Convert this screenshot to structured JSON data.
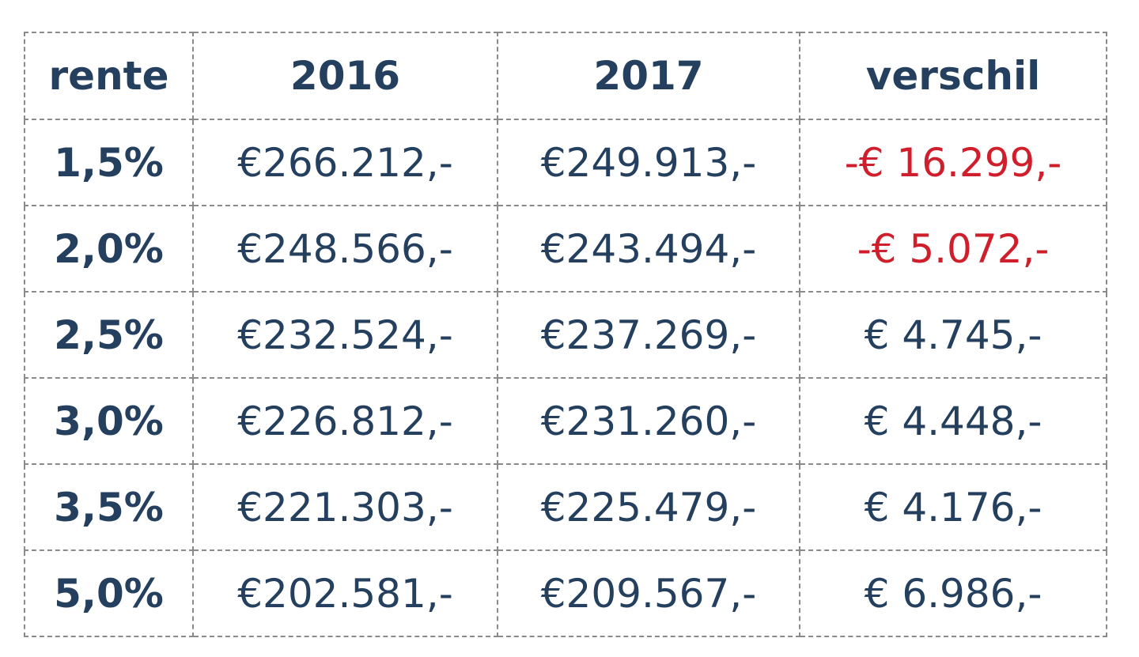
{
  "table": {
    "header": [
      "rente",
      "2016",
      "2017",
      "verschil"
    ],
    "rows": [
      [
        "1,5%",
        "€266.212,-",
        "€249.913,-",
        "-€ 16.299,-"
      ],
      [
        "2,0%",
        "€248.566,-",
        "€243.494,-",
        "-€ 5.072,-"
      ],
      [
        "2,5%",
        "€232.524,-",
        "€237.269,-",
        "€ 4.745,-"
      ],
      [
        "3,0%",
        "€226.812,-",
        "€231.260,-",
        "€ 4.448,-"
      ],
      [
        "3,5%",
        "€221.303,-",
        "€225.479,-",
        "€ 4.176,-"
      ],
      [
        "5,0%",
        "€202.581,-",
        "€209.567,-",
        "€ 6.986,-"
      ]
    ]
  }
}
